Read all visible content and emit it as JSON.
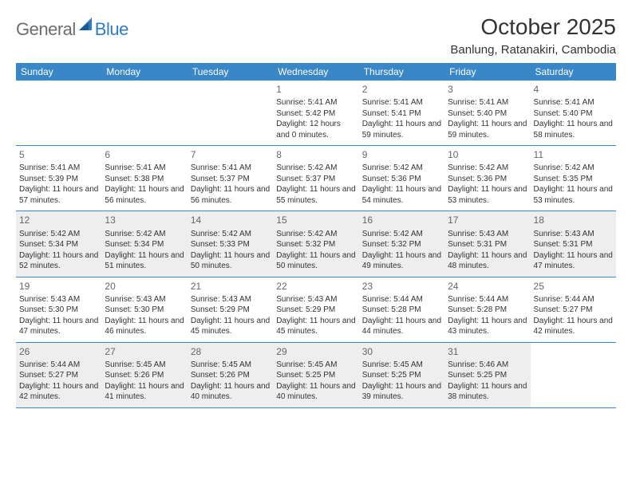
{
  "logo": {
    "general": "General",
    "blue": "Blue"
  },
  "title": "October 2025",
  "location": "Banlung, Ratanakiri, Cambodia",
  "day_headers": [
    "Sunday",
    "Monday",
    "Tuesday",
    "Wednesday",
    "Thursday",
    "Friday",
    "Saturday"
  ],
  "colors": {
    "header_bg": "#3a87c8",
    "header_text": "#ffffff",
    "grey_bg": "#eeeeee",
    "border": "#3a87c8",
    "logo_grey": "#6d6d6d",
    "logo_blue": "#2f7bc4"
  },
  "weeks": [
    [
      {
        "num": "",
        "lines": []
      },
      {
        "num": "",
        "lines": []
      },
      {
        "num": "",
        "lines": []
      },
      {
        "num": "1",
        "lines": [
          "Sunrise: 5:41 AM",
          "Sunset: 5:42 PM",
          "Daylight: 12 hours and 0 minutes."
        ]
      },
      {
        "num": "2",
        "lines": [
          "Sunrise: 5:41 AM",
          "Sunset: 5:41 PM",
          "Daylight: 11 hours and 59 minutes."
        ]
      },
      {
        "num": "3",
        "lines": [
          "Sunrise: 5:41 AM",
          "Sunset: 5:40 PM",
          "Daylight: 11 hours and 59 minutes."
        ]
      },
      {
        "num": "4",
        "lines": [
          "Sunrise: 5:41 AM",
          "Sunset: 5:40 PM",
          "Daylight: 11 hours and 58 minutes."
        ]
      }
    ],
    [
      {
        "num": "5",
        "lines": [
          "Sunrise: 5:41 AM",
          "Sunset: 5:39 PM",
          "Daylight: 11 hours and 57 minutes."
        ]
      },
      {
        "num": "6",
        "lines": [
          "Sunrise: 5:41 AM",
          "Sunset: 5:38 PM",
          "Daylight: 11 hours and 56 minutes."
        ]
      },
      {
        "num": "7",
        "lines": [
          "Sunrise: 5:41 AM",
          "Sunset: 5:37 PM",
          "Daylight: 11 hours and 56 minutes."
        ]
      },
      {
        "num": "8",
        "lines": [
          "Sunrise: 5:42 AM",
          "Sunset: 5:37 PM",
          "Daylight: 11 hours and 55 minutes."
        ]
      },
      {
        "num": "9",
        "lines": [
          "Sunrise: 5:42 AM",
          "Sunset: 5:36 PM",
          "Daylight: 11 hours and 54 minutes."
        ]
      },
      {
        "num": "10",
        "lines": [
          "Sunrise: 5:42 AM",
          "Sunset: 5:36 PM",
          "Daylight: 11 hours and 53 minutes."
        ]
      },
      {
        "num": "11",
        "lines": [
          "Sunrise: 5:42 AM",
          "Sunset: 5:35 PM",
          "Daylight: 11 hours and 53 minutes."
        ]
      }
    ],
    [
      {
        "num": "12",
        "lines": [
          "Sunrise: 5:42 AM",
          "Sunset: 5:34 PM",
          "Daylight: 11 hours and 52 minutes."
        ]
      },
      {
        "num": "13",
        "lines": [
          "Sunrise: 5:42 AM",
          "Sunset: 5:34 PM",
          "Daylight: 11 hours and 51 minutes."
        ]
      },
      {
        "num": "14",
        "lines": [
          "Sunrise: 5:42 AM",
          "Sunset: 5:33 PM",
          "Daylight: 11 hours and 50 minutes."
        ]
      },
      {
        "num": "15",
        "lines": [
          "Sunrise: 5:42 AM",
          "Sunset: 5:32 PM",
          "Daylight: 11 hours and 50 minutes."
        ]
      },
      {
        "num": "16",
        "lines": [
          "Sunrise: 5:42 AM",
          "Sunset: 5:32 PM",
          "Daylight: 11 hours and 49 minutes."
        ]
      },
      {
        "num": "17",
        "lines": [
          "Sunrise: 5:43 AM",
          "Sunset: 5:31 PM",
          "Daylight: 11 hours and 48 minutes."
        ]
      },
      {
        "num": "18",
        "lines": [
          "Sunrise: 5:43 AM",
          "Sunset: 5:31 PM",
          "Daylight: 11 hours and 47 minutes."
        ]
      }
    ],
    [
      {
        "num": "19",
        "lines": [
          "Sunrise: 5:43 AM",
          "Sunset: 5:30 PM",
          "Daylight: 11 hours and 47 minutes."
        ]
      },
      {
        "num": "20",
        "lines": [
          "Sunrise: 5:43 AM",
          "Sunset: 5:30 PM",
          "Daylight: 11 hours and 46 minutes."
        ]
      },
      {
        "num": "21",
        "lines": [
          "Sunrise: 5:43 AM",
          "Sunset: 5:29 PM",
          "Daylight: 11 hours and 45 minutes."
        ]
      },
      {
        "num": "22",
        "lines": [
          "Sunrise: 5:43 AM",
          "Sunset: 5:29 PM",
          "Daylight: 11 hours and 45 minutes."
        ]
      },
      {
        "num": "23",
        "lines": [
          "Sunrise: 5:44 AM",
          "Sunset: 5:28 PM",
          "Daylight: 11 hours and 44 minutes."
        ]
      },
      {
        "num": "24",
        "lines": [
          "Sunrise: 5:44 AM",
          "Sunset: 5:28 PM",
          "Daylight: 11 hours and 43 minutes."
        ]
      },
      {
        "num": "25",
        "lines": [
          "Sunrise: 5:44 AM",
          "Sunset: 5:27 PM",
          "Daylight: 11 hours and 42 minutes."
        ]
      }
    ],
    [
      {
        "num": "26",
        "lines": [
          "Sunrise: 5:44 AM",
          "Sunset: 5:27 PM",
          "Daylight: 11 hours and 42 minutes."
        ]
      },
      {
        "num": "27",
        "lines": [
          "Sunrise: 5:45 AM",
          "Sunset: 5:26 PM",
          "Daylight: 11 hours and 41 minutes."
        ]
      },
      {
        "num": "28",
        "lines": [
          "Sunrise: 5:45 AM",
          "Sunset: 5:26 PM",
          "Daylight: 11 hours and 40 minutes."
        ]
      },
      {
        "num": "29",
        "lines": [
          "Sunrise: 5:45 AM",
          "Sunset: 5:25 PM",
          "Daylight: 11 hours and 40 minutes."
        ]
      },
      {
        "num": "30",
        "lines": [
          "Sunrise: 5:45 AM",
          "Sunset: 5:25 PM",
          "Daylight: 11 hours and 39 minutes."
        ]
      },
      {
        "num": "31",
        "lines": [
          "Sunrise: 5:46 AM",
          "Sunset: 5:25 PM",
          "Daylight: 11 hours and 38 minutes."
        ]
      },
      {
        "num": "",
        "lines": []
      }
    ]
  ]
}
